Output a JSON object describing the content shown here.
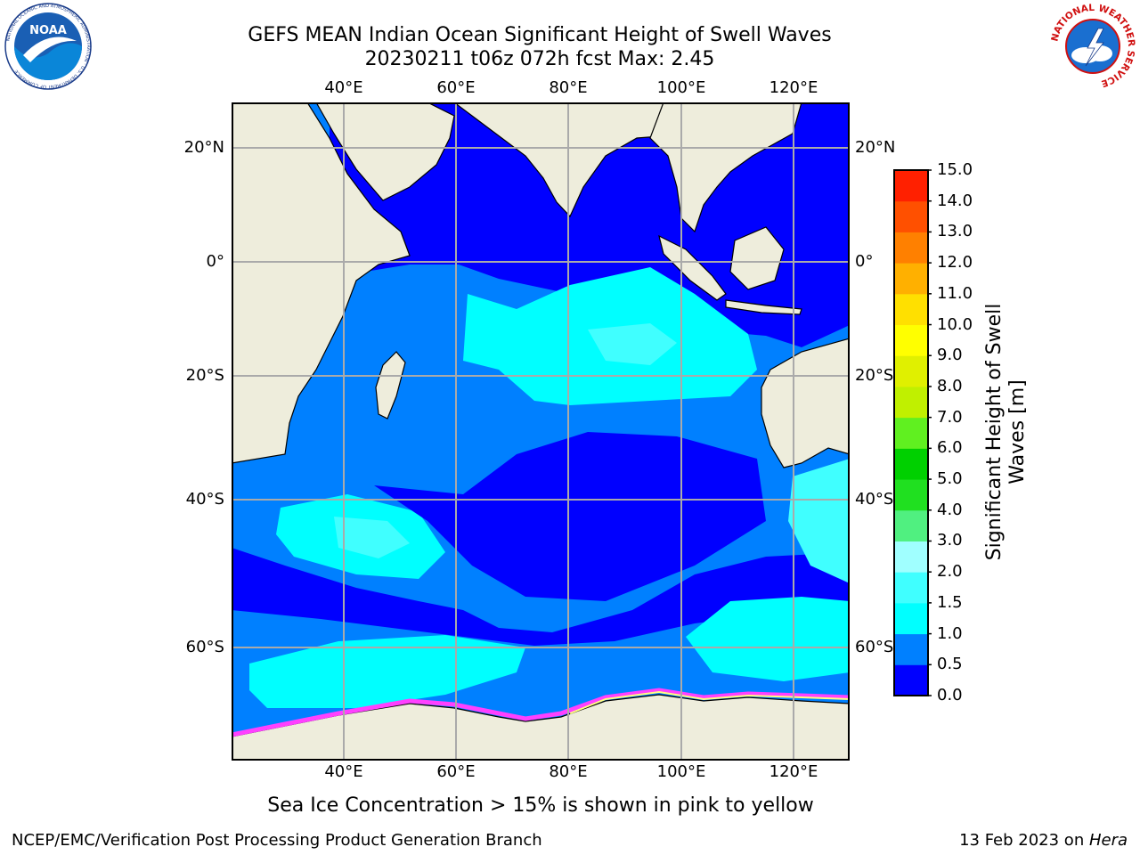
{
  "title": {
    "line1": "GEFS MEAN Indian Ocean Significant Height of Swell Waves",
    "line2": "20230211 t06z 072h fcst   Max: 2.45"
  },
  "map": {
    "lon_ticks": [
      "40°E",
      "60°E",
      "80°E",
      "100°E",
      "120°E"
    ],
    "lat_ticks_left": [
      "20°N",
      "0°",
      "20°S",
      "40°S",
      "60°S"
    ],
    "lat_ticks_right": [
      "20°N",
      "0°",
      "20°S",
      "40°S",
      "60°S"
    ],
    "colors": {
      "land": "#eeeddc",
      "level_0": "#0000ff",
      "level_1": "#0080ff",
      "level_2": "#00ffff",
      "level_3": "#40ffff",
      "ice_pink": "#ff40ff",
      "ice_light": "#ffc0ff",
      "ice_yellow": "#ffff80",
      "grid": "#aaaaaa"
    }
  },
  "colorbar": {
    "label_line1": "Significant Height of Swell",
    "label_line2": "Waves [m]",
    "ticks": [
      "0.0",
      "0.5",
      "1.0",
      "1.5",
      "2.0",
      "3.0",
      "4.0",
      "5.0",
      "6.0",
      "7.0",
      "8.0",
      "9.0",
      "10.0",
      "11.0",
      "12.0",
      "13.0",
      "14.0",
      "15.0"
    ],
    "colors": [
      "#0000ff",
      "#0080ff",
      "#00ffff",
      "#40ffff",
      "#a0ffff",
      "#50f080",
      "#20e020",
      "#00d000",
      "#60f020",
      "#c0f000",
      "#e0f000",
      "#ffff00",
      "#ffe000",
      "#ffb000",
      "#ff8000",
      "#ff5000",
      "#ff2000",
      "#ff0000"
    ]
  },
  "footnote": "Sea Ice Concentration > 15% is shown in pink to yellow",
  "footer": {
    "left": "NCEP/EMC/Verification Post Processing Product Generation Branch",
    "right_prefix": "13 Feb 2023 on ",
    "right_host": "Hera"
  },
  "logos": {
    "noaa_text": "NOAA",
    "noaa_ring": "NATIONAL OCEANIC AND ATMOSPHERIC ADMINISTRATION · U.S. DEPARTMENT OF COMMERCE",
    "nws_ring": "NATIONAL WEATHER SERVICE"
  }
}
